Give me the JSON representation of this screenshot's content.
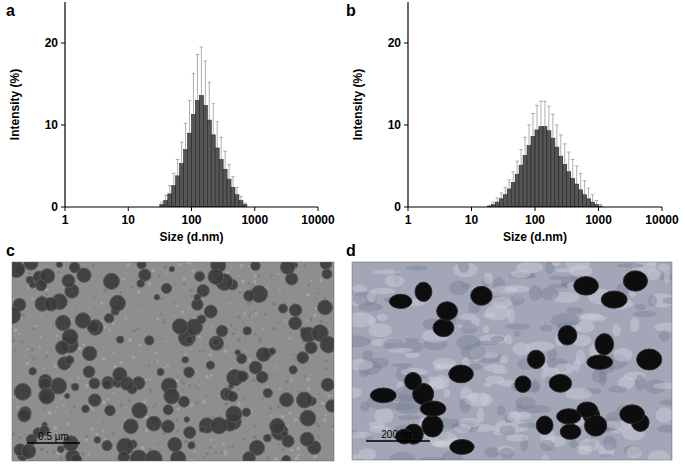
{
  "chart_data": [
    {
      "type": "histogram",
      "title": "a",
      "x_label": "Size (d.nm)",
      "y_label": "Intensity (%)",
      "bins": [
        31.6,
        36.5,
        42.2,
        48.7,
        56.2,
        64.9,
        75.0,
        86.6,
        100,
        115.5,
        133.4,
        154.0,
        177.8,
        205.4,
        237.1,
        273.8,
        316.2,
        365.2,
        421.7,
        487.0,
        562.3,
        649.4,
        749.9
      ],
      "values": [
        0.3,
        0.8,
        1.6,
        2.6,
        3.8,
        5.3,
        7.0,
        9.0,
        11.3,
        13.0,
        13.6,
        12.4,
        10.6,
        8.8,
        7.2,
        5.8,
        4.6,
        3.4,
        2.4,
        1.5,
        0.8,
        0.3
      ],
      "errors": [
        0.3,
        0.6,
        1.0,
        1.5,
        2.0,
        2.6,
        3.2,
        4.0,
        5.0,
        5.6,
        5.9,
        5.4,
        4.6,
        3.8,
        3.2,
        2.7,
        2.2,
        1.8,
        1.3,
        0.9,
        0.5,
        0.2
      ],
      "xlim": [
        1,
        10000
      ],
      "ylim": [
        0,
        25
      ],
      "xticks": [
        1,
        10,
        100,
        1000,
        10000
      ],
      "yticks": [
        0,
        10,
        20
      ],
      "log": "x",
      "color": "#555555"
    },
    {
      "type": "histogram",
      "title": "b",
      "x_label": "Size (d.nm)",
      "y_label": "Intensity (%)",
      "bins": [
        17.8,
        20.5,
        23.7,
        27.4,
        31.6,
        36.5,
        42.2,
        48.7,
        56.2,
        64.9,
        75.0,
        86.6,
        100,
        115.5,
        133.4,
        154.0,
        177.8,
        205.4,
        237.1,
        273.8,
        316.2,
        365.2,
        421.7,
        487.0,
        562.3,
        649.4,
        749.9,
        866.0,
        1000,
        1154.8
      ],
      "values": [
        0.1,
        0.3,
        0.6,
        1.0,
        1.5,
        2.2,
        3.0,
        4.0,
        5.1,
        6.3,
        7.5,
        8.6,
        9.4,
        9.8,
        9.8,
        9.3,
        8.4,
        7.3,
        6.2,
        5.2,
        4.3,
        3.5,
        2.8,
        2.1,
        1.5,
        1.0,
        0.6,
        0.3,
        0.1
      ],
      "errors": [
        0.1,
        0.3,
        0.5,
        0.7,
        0.9,
        1.1,
        1.3,
        1.6,
        1.9,
        2.2,
        2.5,
        2.8,
        3.0,
        3.1,
        3.1,
        3.0,
        2.9,
        2.7,
        2.6,
        2.5,
        2.4,
        2.3,
        2.2,
        2.0,
        1.7,
        1.3,
        0.9,
        0.5,
        0.2
      ],
      "xlim": [
        1,
        10000
      ],
      "ylim": [
        0,
        25
      ],
      "xticks": [
        1,
        10,
        100,
        1000,
        10000
      ],
      "yticks": [
        0,
        10,
        20
      ],
      "log": "x",
      "color": "#555555"
    }
  ],
  "images": [
    {
      "label": "c",
      "scale_bar": "0.5 μm"
    },
    {
      "label": "d",
      "scale_bar": "200 nm"
    }
  ]
}
